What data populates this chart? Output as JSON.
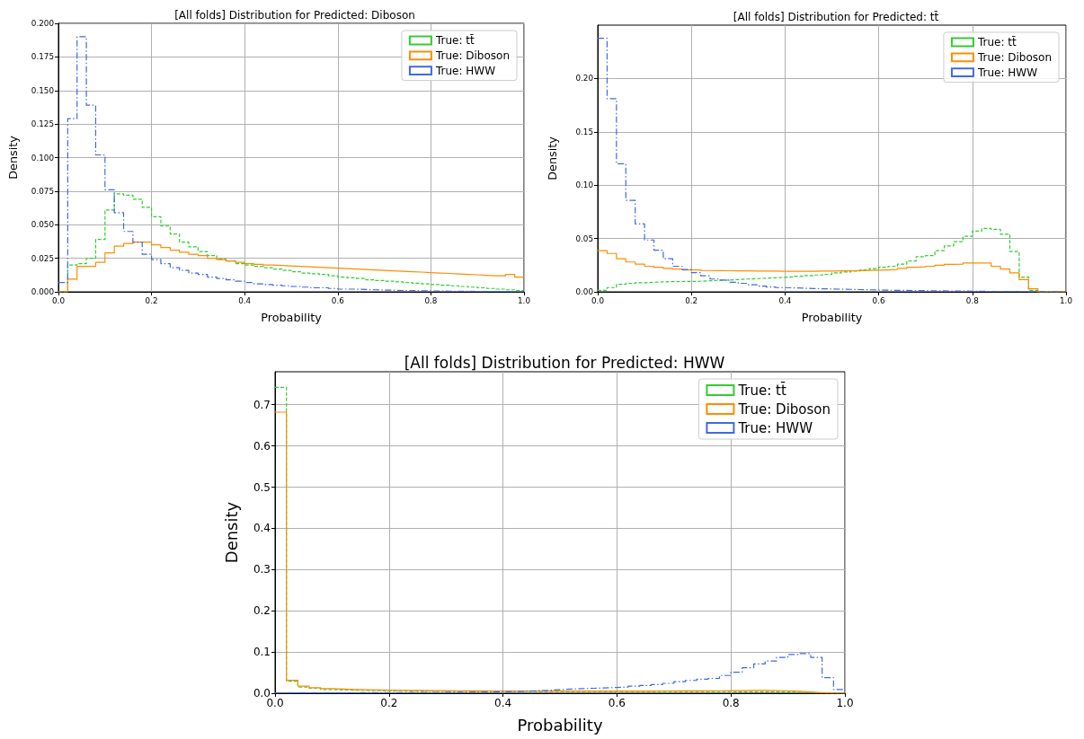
{
  "chart_data": [
    {
      "type": "histogram",
      "title": "[All folds] Distribution for Predicted: Diboson",
      "xlabel": "Probability",
      "ylabel": "Density",
      "bins": [
        0,
        0.02,
        0.04,
        0.06,
        0.08,
        0.1,
        0.12,
        0.14,
        0.16,
        0.18,
        0.2,
        0.22,
        0.24,
        0.26,
        0.28,
        0.3,
        0.32,
        0.34,
        0.36,
        0.38,
        0.4,
        0.42,
        0.44,
        0.46,
        0.48,
        0.5,
        0.52,
        0.54,
        0.56,
        0.58,
        0.6,
        0.62,
        0.64,
        0.66,
        0.68,
        0.7,
        0.72,
        0.74,
        0.76,
        0.78,
        0.8,
        0.82,
        0.84,
        0.86,
        0.88,
        0.9,
        0.92,
        0.94,
        0.96,
        0.98,
        1
      ],
      "series": [
        {
          "name": "True: tt̄",
          "color": "#32cd32",
          "line_style": "dashed",
          "values": [
            0,
            0.02,
            0.021,
            0.025,
            0.039,
            0.061,
            0.073,
            0.072,
            0.069,
            0.063,
            0.056,
            0.049,
            0.043,
            0.037,
            0.0335,
            0.03,
            0.027,
            0.0245,
            0.023,
            0.021,
            0.02,
            0.019,
            0.018,
            0.017,
            0.016,
            0.015,
            0.014,
            0.0135,
            0.013,
            0.012,
            0.011,
            0.0105,
            0.01,
            0.009,
            0.0085,
            0.008,
            0.0075,
            0.007,
            0.0065,
            0.006,
            0.0055,
            0.005,
            0.0045,
            0.004,
            0.0035,
            0.003,
            0.0025,
            0.002,
            0.0015,
            0.001
          ]
        },
        {
          "name": "True: Diboson",
          "color": "#ff8c00",
          "line_style": "solid",
          "values": [
            0,
            0.0095,
            0.019,
            0.019,
            0.022,
            0.029,
            0.034,
            0.036,
            0.037,
            0.037,
            0.035,
            0.033,
            0.031,
            0.0295,
            0.028,
            0.027,
            0.025,
            0.024,
            0.023,
            0.022,
            0.021,
            0.0205,
            0.02,
            0.0197,
            0.0193,
            0.019,
            0.0187,
            0.0183,
            0.018,
            0.0177,
            0.0173,
            0.017,
            0.0167,
            0.0163,
            0.016,
            0.0157,
            0.0153,
            0.015,
            0.0147,
            0.0143,
            0.014,
            0.0137,
            0.0133,
            0.013,
            0.0127,
            0.0123,
            0.012,
            0.012,
            0.013,
            0.011
          ]
        },
        {
          "name": "True: HWW",
          "color": "#4169e1",
          "line_style": "dashdot",
          "values": [
            0.007,
            0.129,
            0.19,
            0.139,
            0.102,
            0.076,
            0.059,
            0.045,
            0.037,
            0.028,
            0.024,
            0.021,
            0.018,
            0.016,
            0.014,
            0.013,
            0.011,
            0.01,
            0.009,
            0.008,
            0.007,
            0.006,
            0.0055,
            0.005,
            0.0045,
            0.004,
            0.0035,
            0.003,
            0.003,
            0.0025,
            0.002,
            0.002,
            0.0018,
            0.0015,
            0.0013,
            0.0012,
            0.001,
            0.001,
            0.0008,
            0.0007,
            0.0006,
            0.0005,
            0.0005,
            0.0004,
            0.0003,
            0.0003,
            0.0002,
            0.0002,
            0.0001,
            0.0001
          ]
        }
      ],
      "xlim": [
        0,
        1
      ],
      "xticks": [
        {
          "value": 0,
          "label": "0.0"
        },
        {
          "value": 0.2,
          "label": "0.2"
        },
        {
          "value": 0.4,
          "label": "0.4"
        },
        {
          "value": 0.6,
          "label": "0.6"
        },
        {
          "value": 0.8,
          "label": "0.8"
        },
        {
          "value": 1,
          "label": "1.0"
        }
      ],
      "ylim": [
        0,
        0.2
      ],
      "yticks": [
        {
          "value": 0,
          "label": "0.000"
        },
        {
          "value": 0.025,
          "label": "0.025"
        },
        {
          "value": 0.05,
          "label": "0.050"
        },
        {
          "value": 0.075,
          "label": "0.075"
        },
        {
          "value": 0.1,
          "label": "0.100"
        },
        {
          "value": 0.125,
          "label": "0.125"
        },
        {
          "value": 0.15,
          "label": "0.150"
        },
        {
          "value": 0.175,
          "label": "0.175"
        },
        {
          "value": 0.2,
          "label": "0.200"
        }
      ],
      "grid": true,
      "legend": "top right"
    },
    {
      "type": "histogram",
      "title": "[All folds] Distribution for Predicted: tt̄",
      "xlabel": "Probability",
      "ylabel": "Density",
      "bins": [
        0,
        0.02,
        0.04,
        0.06,
        0.08,
        0.1,
        0.12,
        0.14,
        0.16,
        0.18,
        0.2,
        0.22,
        0.24,
        0.26,
        0.28,
        0.3,
        0.32,
        0.34,
        0.36,
        0.38,
        0.4,
        0.42,
        0.44,
        0.46,
        0.48,
        0.5,
        0.52,
        0.54,
        0.56,
        0.58,
        0.6,
        0.62,
        0.64,
        0.66,
        0.68,
        0.7,
        0.72,
        0.74,
        0.76,
        0.78,
        0.8,
        0.82,
        0.84,
        0.86,
        0.88,
        0.9,
        0.92,
        0.94,
        0.96,
        0.98,
        1
      ],
      "series": [
        {
          "name": "True: tt̄",
          "color": "#32cd32",
          "line_style": "dashed",
          "values": [
            0.0014,
            0.004,
            0.007,
            0.008,
            0.0086,
            0.009,
            0.0094,
            0.0096,
            0.0097,
            0.0098,
            0.0099,
            0.0104,
            0.0108,
            0.011,
            0.0115,
            0.012,
            0.0124,
            0.0128,
            0.0132,
            0.0136,
            0.014,
            0.0146,
            0.0152,
            0.0158,
            0.0164,
            0.0177,
            0.0186,
            0.0195,
            0.0206,
            0.0218,
            0.023,
            0.024,
            0.026,
            0.029,
            0.033,
            0.034,
            0.0386,
            0.043,
            0.047,
            0.052,
            0.057,
            0.0594,
            0.0586,
            0.054,
            0.0377,
            0.0137,
            0.0014,
            0,
            0,
            0
          ]
        },
        {
          "name": "True: Diboson",
          "color": "#ff8c00",
          "line_style": "solid",
          "values": [
            0.0386,
            0.036,
            0.031,
            0.028,
            0.026,
            0.024,
            0.023,
            0.022,
            0.0214,
            0.0206,
            0.0206,
            0.02,
            0.0199,
            0.0198,
            0.0197,
            0.0196,
            0.0195,
            0.0195,
            0.0194,
            0.0193,
            0.0193,
            0.0193,
            0.0193,
            0.0194,
            0.0195,
            0.0196,
            0.0197,
            0.0199,
            0.0201,
            0.0203,
            0.0206,
            0.021,
            0.022,
            0.023,
            0.0234,
            0.024,
            0.025,
            0.0257,
            0.026,
            0.027,
            0.027,
            0.027,
            0.024,
            0.0214,
            0.0177,
            0.0114,
            0.0029,
            0,
            0,
            0
          ]
        },
        {
          "name": "True: HWW",
          "color": "#4169e1",
          "line_style": "dashdot",
          "values": [
            0.2377,
            0.181,
            0.12,
            0.0857,
            0.0637,
            0.0486,
            0.039,
            0.031,
            0.024,
            0.021,
            0.018,
            0.015,
            0.012,
            0.011,
            0.009,
            0.008,
            0.0066,
            0.0054,
            0.0046,
            0.004,
            0.0037,
            0.0034,
            0.0031,
            0.0029,
            0.0027,
            0.0025,
            0.0023,
            0.0021,
            0.0019,
            0.0017,
            0.0015,
            0.0014,
            0.0013,
            0.0012,
            0.0011,
            0.001,
            0.0009,
            0.0008,
            0.0007,
            0.0006,
            0.0005,
            0.0004,
            0.0003,
            0.0003,
            0.0002,
            0.0001,
            0.0001,
            0,
            0,
            0
          ]
        }
      ],
      "xlim": [
        0,
        1
      ],
      "xticks": [
        {
          "value": 0,
          "label": "0.0"
        },
        {
          "value": 0.2,
          "label": "0.2"
        },
        {
          "value": 0.4,
          "label": "0.4"
        },
        {
          "value": 0.6,
          "label": "0.6"
        },
        {
          "value": 0.8,
          "label": "0.8"
        },
        {
          "value": 1,
          "label": "1.0"
        }
      ],
      "ylim": [
        0,
        0.25
      ],
      "yticks": [
        {
          "value": 0,
          "label": "0.00"
        },
        {
          "value": 0.05,
          "label": "0.05"
        },
        {
          "value": 0.1,
          "label": "0.10"
        },
        {
          "value": 0.15,
          "label": "0.15"
        },
        {
          "value": 0.2,
          "label": "0.20"
        }
      ],
      "grid": true,
      "legend": "top right"
    },
    {
      "type": "histogram",
      "title": "[All folds] Distribution for Predicted: HWW",
      "xlabel": "Probability",
      "ylabel": "Density",
      "bins": [
        0,
        0.02,
        0.04,
        0.06,
        0.08,
        0.1,
        0.12,
        0.14,
        0.16,
        0.18,
        0.2,
        0.22,
        0.24,
        0.26,
        0.28,
        0.3,
        0.32,
        0.34,
        0.36,
        0.38,
        0.4,
        0.42,
        0.44,
        0.46,
        0.48,
        0.5,
        0.52,
        0.54,
        0.56,
        0.58,
        0.6,
        0.62,
        0.64,
        0.66,
        0.68,
        0.7,
        0.72,
        0.74,
        0.76,
        0.78,
        0.8,
        0.82,
        0.84,
        0.86,
        0.88,
        0.9,
        0.92,
        0.94,
        0.96,
        0.98,
        1
      ],
      "series": [
        {
          "name": "True: tt̄",
          "color": "#32cd32",
          "line_style": "dashed",
          "values": [
            0.742,
            0.029,
            0.015,
            0.012,
            0.009,
            0.008,
            0.0075,
            0.007,
            0.0065,
            0.006,
            0.0055,
            0.0053,
            0.0051,
            0.005,
            0.0049,
            0.0048,
            0.0047,
            0.0046,
            0.0045,
            0.0045,
            0.0044,
            0.0044,
            0.0043,
            0.0043,
            0.0042,
            0.0042,
            0.0042,
            0.0041,
            0.0041,
            0.0041,
            0.004,
            0.004,
            0.004,
            0.004,
            0.004,
            0.004,
            0.004,
            0.0039,
            0.0039,
            0.0038,
            0.0037,
            0.0036,
            0.0035,
            0.0034,
            0.003,
            0.0025,
            0.0015,
            0.0005,
            0,
            0
          ]
        },
        {
          "name": "True: Diboson",
          "color": "#ff8c00",
          "line_style": "solid",
          "values": [
            0.682,
            0.0315,
            0.017,
            0.0135,
            0.011,
            0.01,
            0.009,
            0.0085,
            0.008,
            0.0075,
            0.007,
            0.0068,
            0.0066,
            0.0064,
            0.0062,
            0.006,
            0.0058,
            0.0056,
            0.0055,
            0.0054,
            0.0053,
            0.0052,
            0.0051,
            0.005,
            0.005,
            0.005,
            0.005,
            0.005,
            0.005,
            0.005,
            0.0051,
            0.0052,
            0.0053,
            0.0054,
            0.0055,
            0.0056,
            0.0057,
            0.0058,
            0.006,
            0.0062,
            0.0064,
            0.0066,
            0.0066,
            0.0064,
            0.006,
            0.0045,
            0.003,
            0.0015,
            0.0005,
            0
          ]
        },
        {
          "name": "True: HWW",
          "color": "#4169e1",
          "line_style": "dashdot",
          "values": [
            0.0005,
            0.0006,
            0.0007,
            0.0008,
            0.0009,
            0.001,
            0.0011,
            0.0012,
            0.0013,
            0.0014,
            0.0015,
            0.0017,
            0.0019,
            0.0021,
            0.0023,
            0.0025,
            0.0027,
            0.003,
            0.0033,
            0.0036,
            0.004,
            0.005,
            0.006,
            0.007,
            0.0085,
            0.01,
            0.011,
            0.012,
            0.013,
            0.014,
            0.015,
            0.017,
            0.019,
            0.021,
            0.024,
            0.028,
            0.031,
            0.034,
            0.036,
            0.043,
            0.051,
            0.062,
            0.071,
            0.078,
            0.087,
            0.094,
            0.096,
            0.087,
            0.038,
            0.009
          ]
        }
      ],
      "xlim": [
        0,
        1
      ],
      "xticks": [
        {
          "value": 0,
          "label": "0.0"
        },
        {
          "value": 0.2,
          "label": "0.2"
        },
        {
          "value": 0.4,
          "label": "0.4"
        },
        {
          "value": 0.6,
          "label": "0.6"
        },
        {
          "value": 0.8,
          "label": "0.8"
        },
        {
          "value": 1,
          "label": "1.0"
        }
      ],
      "ylim": [
        0,
        0.78
      ],
      "yticks": [
        {
          "value": 0,
          "label": "0.0"
        },
        {
          "value": 0.1,
          "label": "0.1"
        },
        {
          "value": 0.2,
          "label": "0.2"
        },
        {
          "value": 0.3,
          "label": "0.3"
        },
        {
          "value": 0.4,
          "label": "0.4"
        },
        {
          "value": 0.5,
          "label": "0.5"
        },
        {
          "value": 0.6,
          "label": "0.6"
        },
        {
          "value": 0.7,
          "label": "0.7"
        }
      ],
      "grid": true,
      "legend": "top right"
    }
  ]
}
